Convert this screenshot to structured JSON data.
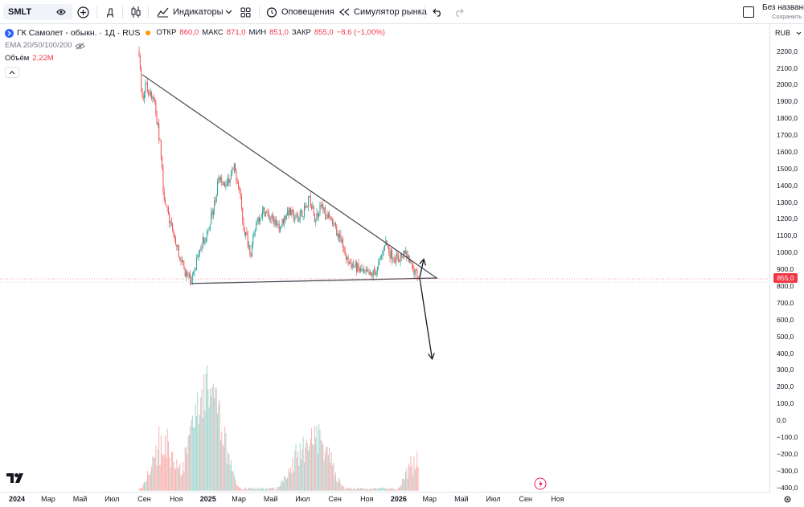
{
  "toolbar": {
    "symbol": "SMLT",
    "interval": "Д",
    "indicators": "Индикаторы",
    "alerts": "Оповещения",
    "replay": "Симулятор рынка",
    "layout_name": "Без названи",
    "layout_status": "Сохранить"
  },
  "legend": {
    "title": "ГК Самолет - обыкн. · 1Д · RUS",
    "open_label": "ОТКР",
    "open": "860,0",
    "high_label": "МАКС",
    "high": "871,0",
    "low_label": "МИН",
    "low": "851,0",
    "close_label": "ЗАКР",
    "close": "855,0",
    "change": "−8,6 (−1,00%)",
    "ema": "EMA 20/50/100/200",
    "volume_label": "Объём",
    "volume": "2,22M"
  },
  "price_axis": {
    "currency": "RUB",
    "labels": [
      "2200,0",
      "2100,0",
      "2000,0",
      "1900,0",
      "1800,0",
      "1700,0",
      "1600,0",
      "1500,0",
      "1400,0",
      "1300,0",
      "1200,0",
      "1100,0",
      "1000,0",
      "900,0",
      "800,0",
      "700,0",
      "600,0",
      "500,0",
      "400,0",
      "300,0",
      "200,0",
      "100,0",
      "0,0",
      "−100,0",
      "−200,0",
      "−300,0",
      "−400,0"
    ],
    "current_price": "855,0"
  },
  "time_axis": {
    "labels": [
      "2024",
      "Мар",
      "Май",
      "Июл",
      "Сен",
      "Ноя",
      "2025",
      "Мар",
      "Май",
      "Июл",
      "Сен",
      "Ноя",
      "2026",
      "Мар",
      "Май",
      "Июл",
      "Сен",
      "Ноя"
    ]
  },
  "colors": {
    "up": "#26a69a",
    "down": "#ef5350",
    "volume_up": "#a5d6d0",
    "volume_down": "#f7b3b1",
    "last_price": "#f23645",
    "trendline": "#434651"
  },
  "chart_data": {
    "type": "candlestick",
    "title": "ГК Самолет - обыкн. · 1Д · RUS",
    "ylim": [
      -400,
      2250
    ],
    "price_path": [
      {
        "x": "2024-08-22",
        "y": 2200
      },
      {
        "x": "2024-08-27",
        "y": 1900
      },
      {
        "x": "2024-09-03",
        "y": 2000
      },
      {
        "x": "2024-09-12",
        "y": 1950
      },
      {
        "x": "2024-09-20",
        "y": 1900
      },
      {
        "x": "2024-10-01",
        "y": 1650
      },
      {
        "x": "2024-10-08",
        "y": 1350
      },
      {
        "x": "2024-10-18",
        "y": 1200
      },
      {
        "x": "2024-11-01",
        "y": 1050
      },
      {
        "x": "2024-11-10",
        "y": 950
      },
      {
        "x": "2024-11-20",
        "y": 870
      },
      {
        "x": "2024-11-28",
        "y": 830
      },
      {
        "x": "2024-12-08",
        "y": 920
      },
      {
        "x": "2024-12-20",
        "y": 1050
      },
      {
        "x": "2025-01-01",
        "y": 1150
      },
      {
        "x": "2025-01-14",
        "y": 1300
      },
      {
        "x": "2025-01-22",
        "y": 1450
      },
      {
        "x": "2025-02-05",
        "y": 1400
      },
      {
        "x": "2025-02-20",
        "y": 1500
      },
      {
        "x": "2025-03-01",
        "y": 1400
      },
      {
        "x": "2025-03-10",
        "y": 1150
      },
      {
        "x": "2025-03-24",
        "y": 1000
      },
      {
        "x": "2025-04-05",
        "y": 1200
      },
      {
        "x": "2025-04-18",
        "y": 1250
      },
      {
        "x": "2025-05-03",
        "y": 1200
      },
      {
        "x": "2025-05-18",
        "y": 1150
      },
      {
        "x": "2025-06-03",
        "y": 1250
      },
      {
        "x": "2025-06-18",
        "y": 1200
      },
      {
        "x": "2025-07-04",
        "y": 1250
      },
      {
        "x": "2025-07-14",
        "y": 1330
      },
      {
        "x": "2025-07-24",
        "y": 1200
      },
      {
        "x": "2025-08-06",
        "y": 1280
      },
      {
        "x": "2025-08-20",
        "y": 1200
      },
      {
        "x": "2025-09-01",
        "y": 1150
      },
      {
        "x": "2025-09-14",
        "y": 1050
      },
      {
        "x": "2025-09-24",
        "y": 950
      },
      {
        "x": "2025-10-08",
        "y": 920
      },
      {
        "x": "2025-10-24",
        "y": 880
      },
      {
        "x": "2025-11-08",
        "y": 860
      },
      {
        "x": "2025-11-21",
        "y": 900
      },
      {
        "x": "2025-12-01",
        "y": 1000
      },
      {
        "x": "2025-12-06",
        "y": 1070
      },
      {
        "x": "2025-12-16",
        "y": 990
      },
      {
        "x": "2025-12-30",
        "y": 960
      },
      {
        "x": "2026-01-14",
        "y": 990
      },
      {
        "x": "2026-01-24",
        "y": 920
      },
      {
        "x": "2026-02-08",
        "y": 855
      }
    ],
    "volume_spikes": [
      {
        "x": "2024-10-05",
        "y": 200
      },
      {
        "x": "2024-12-08",
        "y": 240
      },
      {
        "x": "2025-01-02",
        "y": 300
      },
      {
        "x": "2025-01-22",
        "y": 220
      },
      {
        "x": "2025-06-22",
        "y": 100
      },
      {
        "x": "2025-07-26",
        "y": 90
      },
      {
        "x": "2025-08-13",
        "y": 60
      },
      {
        "x": "2026-02-08",
        "y": 110
      }
    ],
    "trendlines": [
      {
        "from": {
          "x": "2024-08-28",
          "y": 2060
        },
        "to": {
          "x": "2026-03-16",
          "y": 845
        }
      },
      {
        "from": {
          "x": "2024-11-28",
          "y": 815
        },
        "to": {
          "x": "2026-03-16",
          "y": 848
        }
      },
      {
        "from": {
          "x": "2026-02-10",
          "y": 850
        },
        "to": {
          "x": "2026-02-18",
          "y": 960
        }
      },
      {
        "from": {
          "x": "2026-02-10",
          "y": 850
        },
        "to": {
          "x": "2026-03-06",
          "y": 365
        }
      }
    ]
  }
}
